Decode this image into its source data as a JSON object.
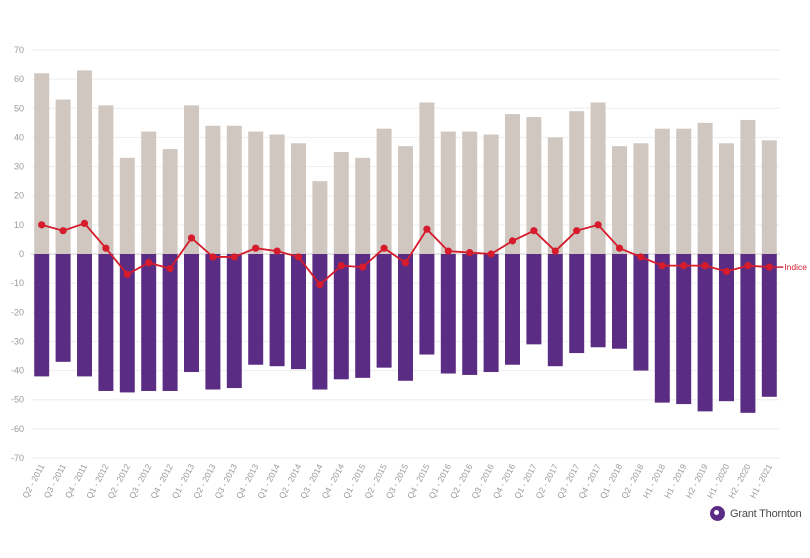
{
  "chart_data": {
    "type": "bar",
    "categories": [
      "Q2 - 2011",
      "Q3 - 2011",
      "Q4 - 2011",
      "Q1 - 2012",
      "Q2 - 2012",
      "Q3 - 2012",
      "Q4 - 2012",
      "Q1 - 2013",
      "Q2 - 2013",
      "Q3 - 2013",
      "Q4 - 2013",
      "Q1 - 2014",
      "Q2 - 2014",
      "Q3 - 2014",
      "Q4 - 2014",
      "Q1 - 2015",
      "Q2 - 2015",
      "Q3 - 2015",
      "Q4 - 2015",
      "Q1 - 2016",
      "Q2 - 2016",
      "Q3 - 2016",
      "Q4 - 2016",
      "Q1 - 2017",
      "Q2 - 2017",
      "Q3 - 2017",
      "Q4 - 2017",
      "Q1 - 2018",
      "Q2 - 2018",
      "H1 - 2018",
      "H1 - 2019",
      "H2 - 2019",
      "H1 - 2020",
      "H2 - 2020",
      "H1 - 2021"
    ],
    "series": [
      {
        "kind": "bar",
        "color": "#cfc7c0",
        "values": [
          62,
          53,
          63,
          51,
          33,
          42,
          36,
          51,
          44,
          44,
          42,
          41,
          38,
          25,
          35,
          33,
          43,
          37,
          52,
          42,
          42,
          41,
          48,
          47,
          40,
          49,
          52,
          37,
          38,
          43,
          43,
          45,
          38,
          46,
          39
        ]
      },
      {
        "kind": "bar",
        "color": "#5a2c83",
        "values": [
          -42,
          -37,
          -42,
          -47,
          -47.5,
          -47,
          -47,
          -40.5,
          -46.5,
          -46,
          -38,
          -38.5,
          -39.5,
          -46.5,
          -43,
          -42.5,
          -39,
          -43.5,
          -34.5,
          -41,
          -41.5,
          -40.5,
          -38,
          -31,
          -38.5,
          -34,
          -32,
          -32.5,
          -40,
          -51,
          -51.5,
          -54,
          -50.5,
          -54.5,
          -49
        ]
      },
      {
        "kind": "line",
        "name": "Indice",
        "color": "#d51b2c",
        "values": [
          10,
          8,
          10.5,
          2,
          -7,
          -3,
          -5,
          5.5,
          -1,
          -1,
          2,
          1,
          -1,
          -10.5,
          -4,
          -4.5,
          2,
          -3,
          8.5,
          1,
          0.5,
          0,
          4.5,
          8,
          1,
          8,
          10,
          2,
          -1,
          -4,
          -4,
          -4,
          -6,
          -4,
          -4.5
        ]
      }
    ],
    "yticks": [
      "70",
      "60",
      "50",
      "40",
      "30",
      "20",
      "10",
      "0",
      "-10",
      "-20",
      "-30",
      "-40",
      "-50",
      "-60",
      "-70"
    ],
    "ylim": [
      -70,
      70
    ],
    "grid": true,
    "legend": "inline label at end of line"
  },
  "logo": {
    "text": "Grant Thornton"
  }
}
